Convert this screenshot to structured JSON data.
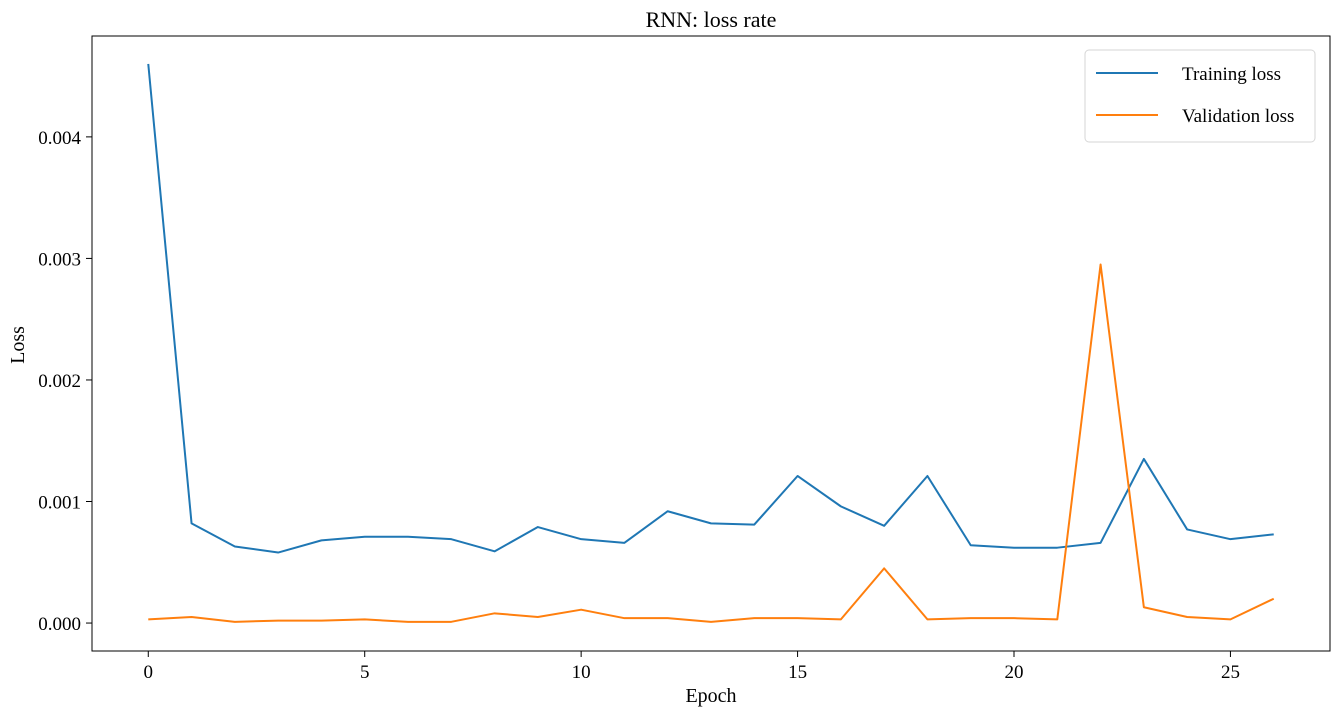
{
  "chart_data": {
    "type": "line",
    "title": "RNN: loss rate",
    "xlabel": "Epoch",
    "ylabel": "Loss",
    "xlim": [
      -1.3,
      27.3
    ],
    "ylim": [
      -0.00023,
      0.00483
    ],
    "x_ticks": [
      0,
      5,
      10,
      15,
      20,
      25
    ],
    "y_ticks": [
      0.0,
      0.001,
      0.002,
      0.003,
      0.004
    ],
    "y_tick_labels": [
      "0.000",
      "0.001",
      "0.002",
      "0.003",
      "0.004"
    ],
    "legend_position": "top-right",
    "grid": false,
    "x": [
      0,
      1,
      2,
      3,
      4,
      5,
      6,
      7,
      8,
      9,
      10,
      11,
      12,
      13,
      14,
      15,
      16,
      17,
      18,
      19,
      20,
      21,
      22,
      23,
      24,
      25,
      26
    ],
    "series": [
      {
        "name": "Training loss",
        "color": "#1f77b4",
        "values": [
          0.0046,
          0.00082,
          0.00063,
          0.00058,
          0.00068,
          0.00071,
          0.00071,
          0.00069,
          0.00059,
          0.00079,
          0.00069,
          0.00066,
          0.00092,
          0.00082,
          0.00081,
          0.00121,
          0.00096,
          0.0008,
          0.00121,
          0.00064,
          0.00062,
          0.00062,
          0.00066,
          0.00135,
          0.00077,
          0.00069,
          0.00073
        ]
      },
      {
        "name": "Validation loss",
        "color": "#ff7f0e",
        "values": [
          3e-05,
          5e-05,
          1e-05,
          2e-05,
          2e-05,
          3e-05,
          1e-05,
          1e-05,
          8e-05,
          5e-05,
          0.00011,
          4e-05,
          4e-05,
          1e-05,
          4e-05,
          4e-05,
          3e-05,
          0.00045,
          3e-05,
          4e-05,
          4e-05,
          3e-05,
          0.00295,
          0.00013,
          5e-05,
          3e-05,
          0.0002
        ]
      }
    ]
  }
}
